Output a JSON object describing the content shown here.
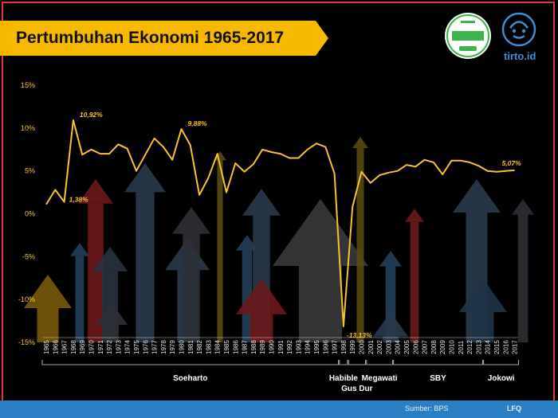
{
  "title": "Pertumbuhan Ekonomi 1965-2017",
  "logo_text": "tirto.id",
  "footer": {
    "source": "Sumber: BPS",
    "author": "LFQ"
  },
  "colors": {
    "line": "#f7c331",
    "banner": "#f7b800",
    "frame": "#e03a3e",
    "footer": "#2a7fc4",
    "background": "#000000"
  },
  "icons": [
    "fact-checking-badge-icon",
    "tirto-mascot-logo-icon"
  ],
  "chart_data": {
    "type": "line",
    "title": "Pertumbuhan Ekonomi 1965-2017",
    "xlabel": "",
    "ylabel": "",
    "ylim": [
      -15,
      15
    ],
    "yticks": [
      "15%",
      "10%",
      "5%",
      "0%",
      "-5%",
      "-10%",
      "-15%"
    ],
    "grid": false,
    "x": [
      "1965",
      "1966",
      "1967",
      "1968",
      "1969",
      "1970",
      "1971",
      "1972",
      "1973",
      "1974",
      "1975",
      "1976",
      "1977",
      "1978",
      "1979",
      "1980",
      "1981",
      "1982",
      "1983",
      "1984",
      "1985",
      "1986",
      "1987",
      "1988",
      "1989",
      "1990",
      "1991",
      "1992",
      "1993",
      "1994",
      "1995",
      "1996",
      "1997",
      "1998",
      "1999",
      "2000",
      "2001",
      "2002",
      "2003",
      "2004",
      "2005",
      "2006",
      "2007",
      "2008",
      "2009",
      "2010",
      "2011",
      "2012",
      "2013",
      "2014",
      "2015",
      "2016",
      "2017"
    ],
    "series": [
      {
        "values": [
          1.1,
          2.8,
          1.38,
          10.92,
          6.9,
          7.5,
          7.0,
          7.0,
          8.1,
          7.6,
          5.0,
          6.9,
          8.8,
          7.8,
          6.3,
          9.88,
          8.0,
          2.2,
          4.2,
          7.0,
          2.5,
          5.9,
          4.9,
          5.8,
          7.5,
          7.2,
          7.0,
          6.5,
          6.5,
          7.5,
          8.2,
          7.8,
          4.7,
          -13.13,
          0.8,
          4.9,
          3.6,
          4.5,
          4.8,
          5.0,
          5.7,
          5.5,
          6.3,
          6.0,
          4.6,
          6.2,
          6.2,
          6.0,
          5.6,
          5.0,
          4.9,
          5.0,
          5.07
        ]
      }
    ],
    "annotations": [
      {
        "x": "1967",
        "label": "1,38%"
      },
      {
        "x": "1968",
        "label": "10,92%"
      },
      {
        "x": "1980",
        "label": "9,88%"
      },
      {
        "x": "1998",
        "label": "-13,13%"
      },
      {
        "x": "2017",
        "label": "5,07%"
      }
    ],
    "eras": [
      {
        "label": "Soeharto",
        "from": "1965",
        "to": "1997"
      },
      {
        "label": "Habible",
        "from": "1998",
        "to": "1998"
      },
      {
        "label": "Gus Dur",
        "from": "1999",
        "to": "2000"
      },
      {
        "label": "Megawati",
        "from": "2001",
        "to": "2003"
      },
      {
        "label": "SBY",
        "from": "2004",
        "to": "2013"
      },
      {
        "label": "Jokowi",
        "from": "2014",
        "to": "2017"
      }
    ]
  }
}
